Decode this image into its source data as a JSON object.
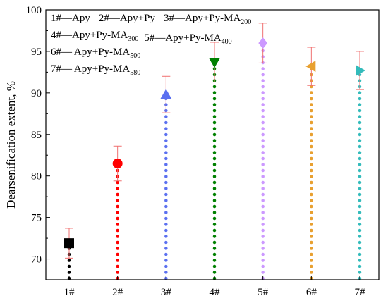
{
  "chart_data": {
    "type": "scatter",
    "title": "",
    "xlabel": "",
    "ylabel": "Dearsenification extent, %",
    "categories": [
      "1#",
      "2#",
      "3#",
      "4#",
      "5#",
      "6#",
      "7#"
    ],
    "ylim": [
      67.5,
      100
    ],
    "yticks": [
      70,
      75,
      80,
      85,
      90,
      95,
      100
    ],
    "grid": false,
    "legend_position": "top-left",
    "legend": [
      {
        "label": "1#—Apy",
        "sub": ""
      },
      {
        "label": "2#—Apy+Py",
        "sub": ""
      },
      {
        "label": "3#—Apy+Py-MA",
        "sub": "200"
      },
      {
        "label": "4#—Apy+Py-MA",
        "sub": "300"
      },
      {
        "label": "5#—Apy+Py-MA",
        "sub": "400"
      },
      {
        "label": "6#— Apy+Py-MA",
        "sub": "500"
      },
      {
        "label": "7#— Apy+Py-MA",
        "sub": "580"
      }
    ],
    "points": [
      {
        "category": "1#",
        "value": 71.9,
        "error": 1.8,
        "marker": "square",
        "color": "#000000"
      },
      {
        "category": "2#",
        "value": 81.5,
        "error": 2.1,
        "marker": "circle",
        "color": "#ff0000"
      },
      {
        "category": "3#",
        "value": 89.8,
        "error": 2.2,
        "marker": "triangle-up",
        "color": "#5b70f0"
      },
      {
        "category": "4#",
        "value": 93.7,
        "error": 2.4,
        "marker": "triangle-down",
        "color": "#008000"
      },
      {
        "category": "5#",
        "value": 96.0,
        "error": 2.4,
        "marker": "diamond",
        "color": "#cc99ff"
      },
      {
        "category": "6#",
        "value": 93.2,
        "error": 2.3,
        "marker": "triangle-left",
        "color": "#e8a030"
      },
      {
        "category": "7#",
        "value": 92.7,
        "error": 2.3,
        "marker": "triangle-right",
        "color": "#33bbbb"
      }
    ],
    "error_bar_color": "#f07070"
  }
}
